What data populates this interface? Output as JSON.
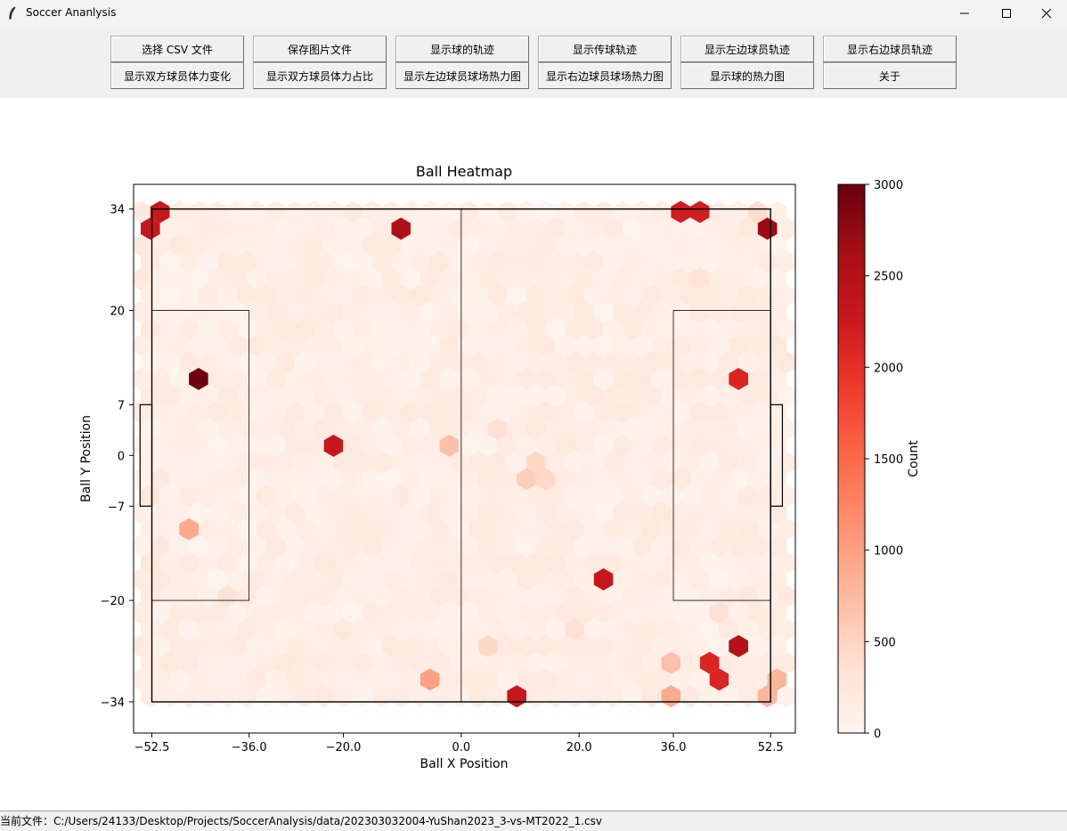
{
  "window": {
    "title": "Soccer Ananlysis"
  },
  "toolbar": {
    "row1": [
      "选择 CSV 文件",
      "保存图片文件",
      "显示球的轨迹",
      "显示传球轨迹",
      "显示左边球员轨迹",
      "显示右边球员轨迹"
    ],
    "row2": [
      "显示双方球员体力变化",
      "显示双方球员体力占比",
      "显示左边球员球场热力图",
      "显示右边球员球场热力图",
      "显示球的热力图",
      "关于"
    ]
  },
  "status": {
    "text": "当前文件：C:/Users/24133/Desktop/Projects/SoccerAnalysis/data/202303032004-YuShan2023_3-vs-MT2022_1.csv"
  },
  "chart_data": {
    "type": "heatmap",
    "title": "Ball Heatmap",
    "xlabel": "Ball X Position",
    "ylabel": "Ball Y Position",
    "xlim": [
      -55.6,
      56.7
    ],
    "ylim": [
      -38.3,
      37.4
    ],
    "xticks": [
      "−52.5",
      "−36.0",
      "−20.0",
      "0.0",
      "20.0",
      "36.0",
      "52.5"
    ],
    "xtick_values": [
      -52.5,
      -36,
      -20,
      0,
      20,
      36,
      52.5
    ],
    "yticks": [
      "34",
      "20",
      "7",
      "0",
      "−7",
      "−20",
      "−34"
    ],
    "ytick_values": [
      34,
      20,
      7,
      0,
      -7,
      -20,
      -34
    ],
    "colorbar": {
      "label": "Count",
      "min": 0,
      "max": 3000,
      "ticks": [
        "0",
        "500",
        "1000",
        "1500",
        "2000",
        "2500",
        "3000"
      ],
      "tick_values": [
        0,
        500,
        1000,
        1500,
        2000,
        2500,
        3000
      ],
      "colormap": "Reds"
    },
    "field": {
      "half_length": 52.5,
      "half_width": 34,
      "penalty_depth": 36,
      "penalty_half_width": 20,
      "goal_depth": 2,
      "goal_half_width": 7
    },
    "hotspots": [
      {
        "x": -50.5,
        "y": 34.0,
        "count": 2300
      },
      {
        "x": -52.5,
        "y": 32.0,
        "count": 2300
      },
      {
        "x": -46.0,
        "y": 10.0,
        "count": 2950
      },
      {
        "x": -46.0,
        "y": -10.0,
        "count": 900
      },
      {
        "x": -21.5,
        "y": 2.0,
        "count": 2300
      },
      {
        "x": -9.0,
        "y": 32.0,
        "count": 2550
      },
      {
        "x": -5.0,
        "y": -32.0,
        "count": 1000
      },
      {
        "x": -2.0,
        "y": 0.0,
        "count": 700
      },
      {
        "x": 11.0,
        "y": -34.0,
        "count": 2300
      },
      {
        "x": 25.0,
        "y": -18.0,
        "count": 2300
      },
      {
        "x": 36.0,
        "y": -34.0,
        "count": 900
      },
      {
        "x": 39.0,
        "y": 34.0,
        "count": 2200
      },
      {
        "x": 42.5,
        "y": -30.0,
        "count": 2100
      },
      {
        "x": 46.0,
        "y": 10.0,
        "count": 2100
      },
      {
        "x": 46.0,
        "y": -26.0,
        "count": 2500
      },
      {
        "x": 52.5,
        "y": 32.0,
        "count": 2700
      },
      {
        "x": 51.0,
        "y": 34.0,
        "count": 400
      },
      {
        "x": 52.5,
        "y": -32.0,
        "count": 800
      },
      {
        "x": 37.0,
        "y": -28.0,
        "count": 700
      },
      {
        "x": 12.0,
        "y": -4.0,
        "count": 550
      },
      {
        "x": 14.0,
        "y": -2.0,
        "count": 450
      },
      {
        "x": 5.0,
        "y": 4.0,
        "count": 350
      },
      {
        "x": -40.0,
        "y": -20.0,
        "count": 300
      },
      {
        "x": 3.5,
        "y": -26.0,
        "count": 450
      },
      {
        "x": 20.0,
        "y": -24.0,
        "count": 350
      },
      {
        "x": 40.0,
        "y": 24.0,
        "count": 300
      },
      {
        "x": 44.0,
        "y": -22.0,
        "count": 350
      },
      {
        "x": -52.5,
        "y": -6.0,
        "count": 250
      }
    ]
  }
}
